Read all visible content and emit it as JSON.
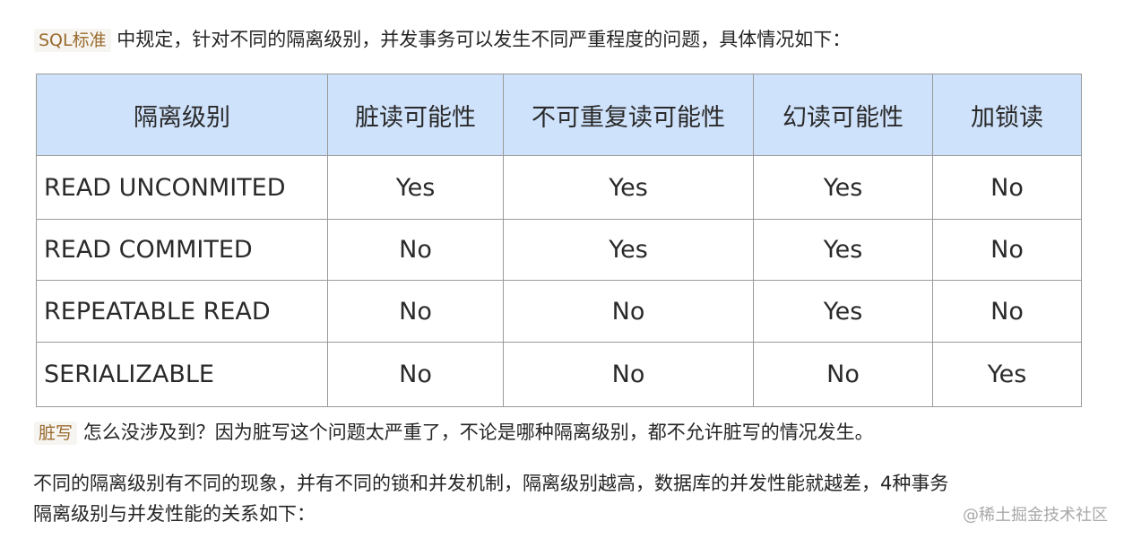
{
  "intro": {
    "code": "SQL标准",
    "text": " 中规定，针对不同的隔离级别，并发事务可以发生不同严重程度的问题，具体情况如下："
  },
  "table": {
    "headers": [
      "隔离级别",
      "脏读可能性",
      "不可重复读可能性",
      "幻读可能性",
      "加锁读"
    ],
    "rows": [
      [
        "READ UNCONMITED",
        "Yes",
        "Yes",
        "Yes",
        "No"
      ],
      [
        "READ COMMITED",
        "No",
        "Yes",
        "Yes",
        "No"
      ],
      [
        "REPEATABLE READ",
        "No",
        "No",
        "Yes",
        "No"
      ],
      [
        "SERIALIZABLE",
        "No",
        "No",
        "No",
        "Yes"
      ]
    ],
    "header_bg": "#cfe2fb"
  },
  "note": {
    "code": "脏写",
    "text": " 怎么没涉及到？因为脏写这个问题太严重了，不论是哪种隔离级别，都不允许脏写的情况发生。"
  },
  "para2": {
    "line1": "不同的隔离级别有不同的现象，并有不同的锁和并发机制，隔离级别越高，数据库的并发性能就越差，4种事务",
    "line2": "隔离级别与并发性能的关系如下："
  },
  "watermark": "@稀土掘金技术社区"
}
